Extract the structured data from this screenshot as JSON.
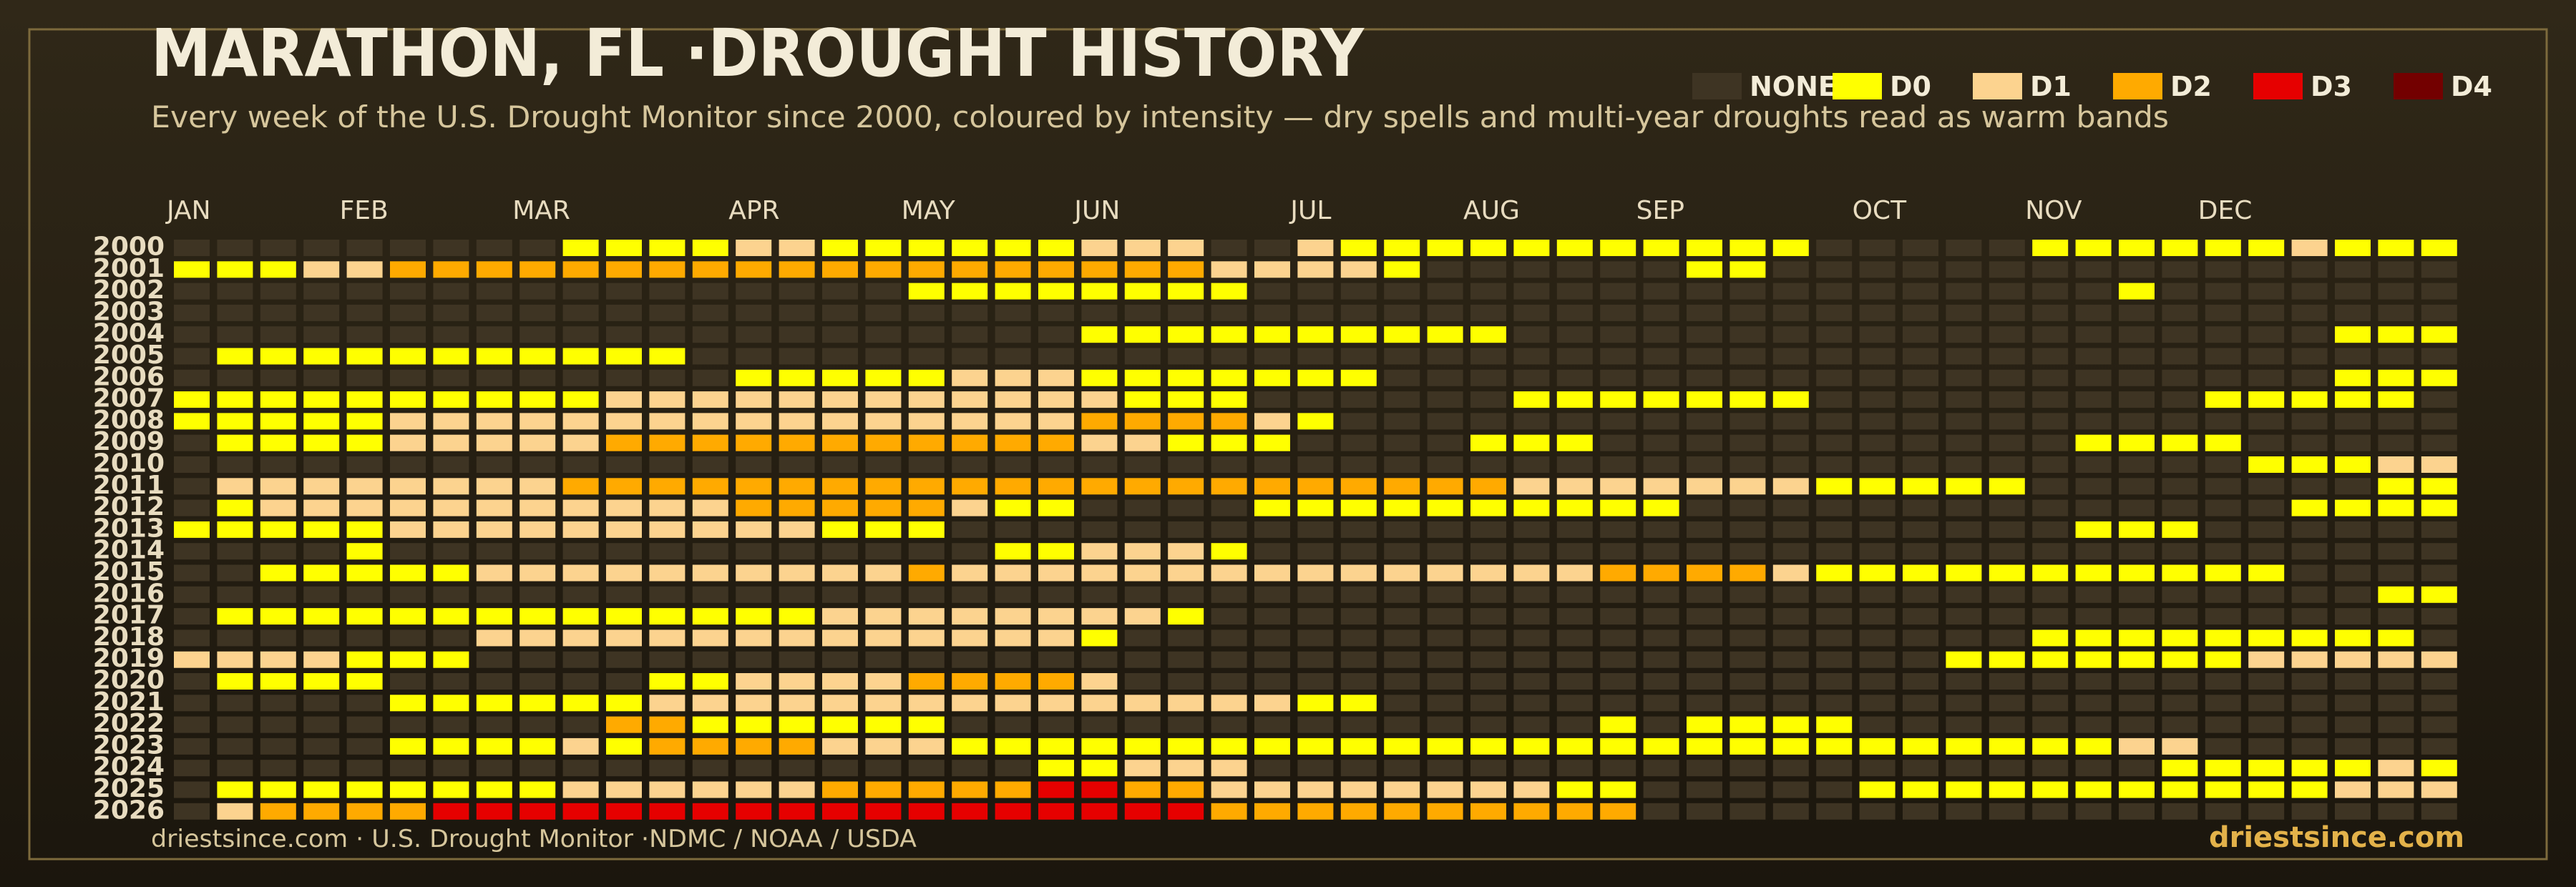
{
  "chart_data": {
    "type": "heatmap",
    "title": "MARATHON, FL ·DROUGHT HISTORY",
    "subtitle": "Every week of the U.S. Drought Monitor since 2000, coloured by intensity — dry spells and multi-year droughts read as warm bands",
    "levels": [
      {
        "name": "NONE",
        "color": "#3e3423"
      },
      {
        "name": "D0",
        "color": "#ffff00"
      },
      {
        "name": "D1",
        "color": "#fcd38f"
      },
      {
        "name": "D2",
        "color": "#ffaa00"
      },
      {
        "name": "D3",
        "color": "#e60000"
      },
      {
        "name": "D4",
        "color": "#730000"
      }
    ],
    "xticks": [
      {
        "value": 0,
        "label": "JAN"
      },
      {
        "value": 4,
        "label": "FEB"
      },
      {
        "value": 8,
        "label": "MAR"
      },
      {
        "value": 13,
        "label": "APR"
      },
      {
        "value": 17,
        "label": "MAY"
      },
      {
        "value": 21,
        "label": "JUN"
      },
      {
        "value": 26,
        "label": "JUL"
      },
      {
        "value": 30,
        "label": "AUG"
      },
      {
        "value": 34,
        "label": "SEP"
      },
      {
        "value": 39,
        "label": "OCT"
      },
      {
        "value": 43,
        "label": "NOV"
      },
      {
        "value": 47,
        "label": "DEC"
      }
    ],
    "categories": [
      "2000",
      "2001",
      "2002",
      "2003",
      "2004",
      "2005",
      "2006",
      "2007",
      "2008",
      "2009",
      "2010",
      "2011",
      "2012",
      "2013",
      "2014",
      "2015",
      "2016",
      "2017",
      "2018",
      "2019",
      "2020",
      "2021",
      "2022",
      "2023",
      "2024",
      "2025",
      "2026"
    ],
    "values": [
      [
        0,
        0,
        0,
        0,
        0,
        0,
        0,
        0,
        0,
        1,
        1,
        1,
        1,
        2,
        2,
        1,
        1,
        1,
        1,
        1,
        1,
        2,
        2,
        2,
        0,
        0,
        2,
        1,
        1,
        1,
        1,
        1,
        1,
        1,
        1,
        1,
        1,
        1,
        0,
        0,
        0,
        0,
        0,
        1,
        1,
        1,
        1,
        1,
        1,
        2,
        1,
        1,
        1
      ],
      [
        1,
        1,
        1,
        2,
        2,
        3,
        3,
        3,
        3,
        3,
        3,
        3,
        3,
        3,
        3,
        3,
        3,
        3,
        3,
        3,
        3,
        3,
        3,
        3,
        2,
        2,
        2,
        2,
        1,
        0,
        0,
        0,
        0,
        0,
        0,
        1,
        1,
        0,
        0,
        0,
        0,
        0,
        0,
        0,
        0,
        0,
        0,
        0,
        0,
        0,
        0,
        0,
        0
      ],
      [
        0,
        0,
        0,
        0,
        0,
        0,
        0,
        0,
        0,
        0,
        0,
        0,
        0,
        0,
        0,
        0,
        0,
        1,
        1,
        1,
        1,
        1,
        1,
        1,
        1,
        0,
        0,
        0,
        0,
        0,
        0,
        0,
        0,
        0,
        0,
        0,
        0,
        0,
        0,
        0,
        0,
        0,
        0,
        0,
        0,
        1,
        0,
        0,
        0,
        0,
        0,
        0,
        0
      ],
      [
        0,
        0,
        0,
        0,
        0,
        0,
        0,
        0,
        0,
        0,
        0,
        0,
        0,
        0,
        0,
        0,
        0,
        0,
        0,
        0,
        0,
        0,
        0,
        0,
        0,
        0,
        0,
        0,
        0,
        0,
        0,
        0,
        0,
        0,
        0,
        0,
        0,
        0,
        0,
        0,
        0,
        0,
        0,
        0,
        0,
        0,
        0,
        0,
        0,
        0,
        0,
        0,
        0
      ],
      [
        0,
        0,
        0,
        0,
        0,
        0,
        0,
        0,
        0,
        0,
        0,
        0,
        0,
        0,
        0,
        0,
        0,
        0,
        0,
        0,
        0,
        1,
        1,
        1,
        1,
        1,
        1,
        1,
        1,
        1,
        1,
        0,
        0,
        0,
        0,
        0,
        0,
        0,
        0,
        0,
        0,
        0,
        0,
        0,
        0,
        0,
        0,
        0,
        0,
        0,
        1,
        1,
        1
      ],
      [
        0,
        1,
        1,
        1,
        1,
        1,
        1,
        1,
        1,
        1,
        1,
        1,
        0,
        0,
        0,
        0,
        0,
        0,
        0,
        0,
        0,
        0,
        0,
        0,
        0,
        0,
        0,
        0,
        0,
        0,
        0,
        0,
        0,
        0,
        0,
        0,
        0,
        0,
        0,
        0,
        0,
        0,
        0,
        0,
        0,
        0,
        0,
        0,
        0,
        0,
        0,
        0,
        0
      ],
      [
        0,
        0,
        0,
        0,
        0,
        0,
        0,
        0,
        0,
        0,
        0,
        0,
        0,
        1,
        1,
        1,
        1,
        1,
        2,
        2,
        2,
        1,
        1,
        1,
        1,
        1,
        1,
        1,
        0,
        0,
        0,
        0,
        0,
        0,
        0,
        0,
        0,
        0,
        0,
        0,
        0,
        0,
        0,
        0,
        0,
        0,
        0,
        0,
        0,
        0,
        1,
        1,
        1
      ],
      [
        1,
        1,
        1,
        1,
        1,
        1,
        1,
        1,
        1,
        1,
        2,
        2,
        2,
        2,
        2,
        2,
        2,
        2,
        2,
        2,
        2,
        2,
        1,
        1,
        1,
        0,
        0,
        0,
        0,
        0,
        0,
        1,
        1,
        1,
        1,
        1,
        1,
        1,
        0,
        0,
        0,
        0,
        0,
        0,
        0,
        0,
        0,
        1,
        1,
        1,
        1,
        1,
        0
      ],
      [
        1,
        1,
        1,
        1,
        1,
        2,
        2,
        2,
        2,
        2,
        2,
        2,
        2,
        2,
        2,
        2,
        2,
        2,
        2,
        2,
        2,
        3,
        3,
        3,
        3,
        2,
        1,
        0,
        0,
        0,
        0,
        0,
        0,
        0,
        0,
        0,
        0,
        0,
        0,
        0,
        0,
        0,
        0,
        0,
        0,
        0,
        0,
        0,
        0,
        0,
        0,
        0,
        0
      ],
      [
        0,
        1,
        1,
        1,
        1,
        2,
        2,
        2,
        2,
        2,
        3,
        3,
        3,
        3,
        3,
        3,
        3,
        3,
        3,
        3,
        3,
        2,
        2,
        1,
        1,
        1,
        0,
        0,
        0,
        0,
        1,
        1,
        1,
        0,
        0,
        0,
        0,
        0,
        0,
        0,
        0,
        0,
        0,
        0,
        1,
        1,
        1,
        1,
        0,
        0,
        0,
        0,
        0
      ],
      [
        0,
        0,
        0,
        0,
        0,
        0,
        0,
        0,
        0,
        0,
        0,
        0,
        0,
        0,
        0,
        0,
        0,
        0,
        0,
        0,
        0,
        0,
        0,
        0,
        0,
        0,
        0,
        0,
        0,
        0,
        0,
        0,
        0,
        0,
        0,
        0,
        0,
        0,
        0,
        0,
        0,
        0,
        0,
        0,
        0,
        0,
        0,
        0,
        1,
        1,
        1,
        2,
        2
      ],
      [
        0,
        2,
        2,
        2,
        2,
        2,
        2,
        2,
        2,
        3,
        3,
        3,
        3,
        3,
        3,
        3,
        3,
        3,
        3,
        3,
        3,
        3,
        3,
        3,
        3,
        3,
        3,
        3,
        3,
        3,
        3,
        2,
        2,
        2,
        2,
        2,
        2,
        2,
        1,
        1,
        1,
        1,
        1,
        0,
        0,
        0,
        0,
        0,
        0,
        0,
        0,
        1,
        1
      ],
      [
        0,
        1,
        2,
        2,
        2,
        2,
        2,
        2,
        2,
        2,
        2,
        2,
        2,
        3,
        3,
        3,
        3,
        3,
        2,
        1,
        1,
        0,
        0,
        0,
        0,
        1,
        1,
        1,
        1,
        1,
        1,
        1,
        1,
        1,
        1,
        0,
        0,
        0,
        0,
        0,
        0,
        0,
        0,
        0,
        0,
        0,
        0,
        0,
        0,
        1,
        1,
        1,
        1
      ],
      [
        1,
        1,
        1,
        1,
        1,
        2,
        2,
        2,
        2,
        2,
        2,
        2,
        2,
        2,
        2,
        1,
        1,
        1,
        0,
        0,
        0,
        0,
        0,
        0,
        0,
        0,
        0,
        0,
        0,
        0,
        0,
        0,
        0,
        0,
        0,
        0,
        0,
        0,
        0,
        0,
        0,
        0,
        0,
        0,
        1,
        1,
        1,
        0,
        0,
        0,
        0,
        0,
        0
      ],
      [
        0,
        0,
        0,
        0,
        1,
        0,
        0,
        0,
        0,
        0,
        0,
        0,
        0,
        0,
        0,
        0,
        0,
        0,
        0,
        1,
        1,
        2,
        2,
        2,
        1,
        0,
        0,
        0,
        0,
        0,
        0,
        0,
        0,
        0,
        0,
        0,
        0,
        0,
        0,
        0,
        0,
        0,
        0,
        0,
        0,
        0,
        0,
        0,
        0,
        0,
        0,
        0,
        0
      ],
      [
        0,
        0,
        1,
        1,
        1,
        1,
        1,
        2,
        2,
        2,
        2,
        2,
        2,
        2,
        2,
        2,
        2,
        3,
        2,
        2,
        2,
        2,
        2,
        2,
        2,
        2,
        2,
        2,
        2,
        2,
        2,
        2,
        2,
        3,
        3,
        3,
        3,
        2,
        1,
        1,
        1,
        1,
        1,
        1,
        1,
        1,
        1,
        1,
        1,
        0,
        0,
        0,
        0
      ],
      [
        0,
        0,
        0,
        0,
        0,
        0,
        0,
        0,
        0,
        0,
        0,
        0,
        0,
        0,
        0,
        0,
        0,
        0,
        0,
        0,
        0,
        0,
        0,
        0,
        0,
        0,
        0,
        0,
        0,
        0,
        0,
        0,
        0,
        0,
        0,
        0,
        0,
        0,
        0,
        0,
        0,
        0,
        0,
        0,
        0,
        0,
        0,
        0,
        0,
        0,
        0,
        1,
        1
      ],
      [
        0,
        1,
        1,
        1,
        1,
        1,
        1,
        1,
        1,
        1,
        1,
        1,
        1,
        1,
        1,
        2,
        2,
        2,
        2,
        2,
        2,
        2,
        2,
        1,
        0,
        0,
        0,
        0,
        0,
        0,
        0,
        0,
        0,
        0,
        0,
        0,
        0,
        0,
        0,
        0,
        0,
        0,
        0,
        0,
        0,
        0,
        0,
        0,
        0,
        0,
        0,
        0,
        0
      ],
      [
        0,
        0,
        0,
        0,
        0,
        0,
        0,
        2,
        2,
        2,
        2,
        2,
        2,
        2,
        2,
        2,
        2,
        2,
        2,
        2,
        2,
        1,
        0,
        0,
        0,
        0,
        0,
        0,
        0,
        0,
        0,
        0,
        0,
        0,
        0,
        0,
        0,
        0,
        0,
        0,
        0,
        0,
        0,
        1,
        1,
        1,
        1,
        1,
        1,
        1,
        1,
        1,
        0
      ],
      [
        2,
        2,
        2,
        2,
        1,
        1,
        1,
        0,
        0,
        0,
        0,
        0,
        0,
        0,
        0,
        0,
        0,
        0,
        0,
        0,
        0,
        0,
        0,
        0,
        0,
        0,
        0,
        0,
        0,
        0,
        0,
        0,
        0,
        0,
        0,
        0,
        0,
        0,
        0,
        0,
        0,
        1,
        1,
        1,
        1,
        1,
        1,
        1,
        2,
        2,
        2,
        2,
        2
      ],
      [
        0,
        1,
        1,
        1,
        1,
        0,
        0,
        0,
        0,
        0,
        0,
        1,
        1,
        2,
        2,
        2,
        2,
        3,
        3,
        3,
        3,
        2,
        0,
        0,
        0,
        0,
        0,
        0,
        0,
        0,
        0,
        0,
        0,
        0,
        0,
        0,
        0,
        0,
        0,
        0,
        0,
        0,
        0,
        0,
        0,
        0,
        0,
        0,
        0,
        0,
        0,
        0,
        0
      ],
      [
        0,
        0,
        0,
        0,
        0,
        1,
        1,
        1,
        1,
        1,
        1,
        2,
        2,
        2,
        2,
        2,
        2,
        2,
        2,
        2,
        2,
        2,
        2,
        2,
        2,
        2,
        1,
        1,
        0,
        0,
        0,
        0,
        0,
        0,
        0,
        0,
        0,
        0,
        0,
        0,
        0,
        0,
        0,
        0,
        0,
        0,
        0,
        0,
        0,
        0,
        0,
        0,
        0
      ],
      [
        0,
        0,
        0,
        0,
        0,
        0,
        0,
        0,
        0,
        0,
        3,
        3,
        1,
        1,
        1,
        1,
        1,
        1,
        0,
        0,
        0,
        0,
        0,
        0,
        0,
        0,
        0,
        0,
        0,
        0,
        0,
        0,
        0,
        1,
        0,
        1,
        1,
        1,
        1,
        0,
        0,
        0,
        0,
        0,
        0,
        0,
        0,
        0,
        0,
        0,
        0,
        0,
        0
      ],
      [
        0,
        0,
        0,
        0,
        0,
        1,
        1,
        1,
        1,
        2,
        1,
        3,
        3,
        3,
        3,
        2,
        2,
        2,
        1,
        1,
        1,
        1,
        1,
        1,
        1,
        1,
        1,
        1,
        1,
        1,
        1,
        1,
        1,
        1,
        1,
        1,
        1,
        1,
        1,
        1,
        1,
        1,
        1,
        1,
        1,
        2,
        2,
        0,
        0,
        0,
        0,
        0,
        0
      ],
      [
        0,
        0,
        0,
        0,
        0,
        0,
        0,
        0,
        0,
        0,
        0,
        0,
        0,
        0,
        0,
        0,
        0,
        0,
        0,
        0,
        1,
        1,
        2,
        2,
        2,
        0,
        0,
        0,
        0,
        0,
        0,
        0,
        0,
        0,
        0,
        0,
        0,
        0,
        0,
        0,
        0,
        0,
        0,
        0,
        0,
        0,
        1,
        1,
        1,
        1,
        1,
        2,
        1
      ],
      [
        0,
        1,
        1,
        1,
        1,
        1,
        1,
        1,
        1,
        2,
        2,
        2,
        2,
        2,
        2,
        3,
        3,
        3,
        3,
        3,
        4,
        4,
        3,
        3,
        2,
        2,
        2,
        2,
        2,
        2,
        2,
        2,
        1,
        1,
        0,
        0,
        0,
        0,
        0,
        1,
        1,
        1,
        1,
        1,
        1,
        1,
        1,
        1,
        1,
        1,
        2,
        2,
        2
      ],
      [
        0,
        2,
        3,
        3,
        3,
        3,
        4,
        4,
        4,
        4,
        4,
        4,
        4,
        4,
        4,
        4,
        4,
        4,
        4,
        4,
        4,
        4,
        4,
        4,
        3,
        3,
        3,
        3,
        3,
        3,
        3,
        3,
        3,
        3,
        0,
        0,
        0,
        0,
        0,
        0,
        0,
        0,
        0,
        0,
        0,
        0,
        0,
        0,
        0,
        0,
        0,
        0,
        0
      ]
    ],
    "source": "driestsince.com  · U.S. Drought Monitor ·NDMC / NOAA / USDA",
    "brand": "driestsince.com"
  }
}
